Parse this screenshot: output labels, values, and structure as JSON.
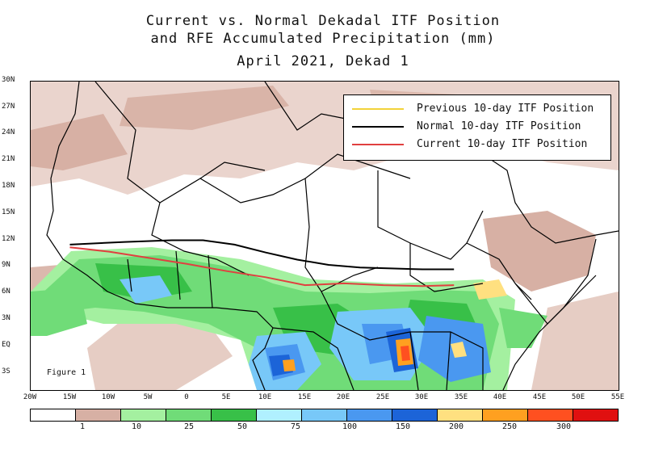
{
  "title": {
    "line1": "Current vs. Normal Dekadal ITF Position",
    "line2": "and RFE Accumulated Precipitation (mm)",
    "line3": "April 2021, Dekad 1"
  },
  "figure_label": "Figure 1",
  "axes": {
    "lat_labels": [
      "30N",
      "27N",
      "24N",
      "21N",
      "18N",
      "15N",
      "12N",
      "9N",
      "6N",
      "3N",
      "EQ",
      "3S"
    ],
    "lon_labels": [
      "20W",
      "15W",
      "10W",
      "5W",
      "0",
      "5E",
      "10E",
      "15E",
      "20E",
      "25E",
      "30E",
      "35E",
      "40E",
      "45E",
      "50E",
      "55E"
    ]
  },
  "legend": {
    "previous": {
      "label": "Previous 10-day ITF Position",
      "color": "#f2d23a"
    },
    "normal": {
      "label": "Normal 10-day ITF Position",
      "color": "#000000"
    },
    "current": {
      "label": "Current 10-day ITF Position",
      "color": "#e04040"
    }
  },
  "colorbar": {
    "colors": [
      "#ffffff",
      "#d7b0a4",
      "#a4f0a0",
      "#70dc78",
      "#38c048",
      "#b0f0ff",
      "#78c8f8",
      "#4a98f0",
      "#1c64d8",
      "#ffe080",
      "#ffa020",
      "#ff5020",
      "#e01010"
    ],
    "labels": [
      "1",
      "10",
      "25",
      "50",
      "75",
      "100",
      "150",
      "200",
      "250",
      "300"
    ]
  },
  "itf": {
    "normal": {
      "lon": [
        -15,
        -8,
        -2,
        2,
        6,
        10,
        14,
        18,
        22,
        26,
        30,
        34
      ],
      "lat": [
        11.5,
        11.8,
        12.0,
        12.0,
        11.5,
        10.6,
        9.8,
        9.2,
        8.9,
        8.8,
        8.7,
        8.7
      ]
    },
    "current": {
      "lon": [
        -15,
        -10,
        -5,
        0,
        5,
        10,
        15,
        20,
        25,
        30,
        34
      ],
      "lat": [
        11.2,
        10.7,
        10.0,
        9.3,
        8.5,
        7.8,
        6.9,
        7.1,
        6.9,
        6.8,
        6.9
      ]
    }
  }
}
